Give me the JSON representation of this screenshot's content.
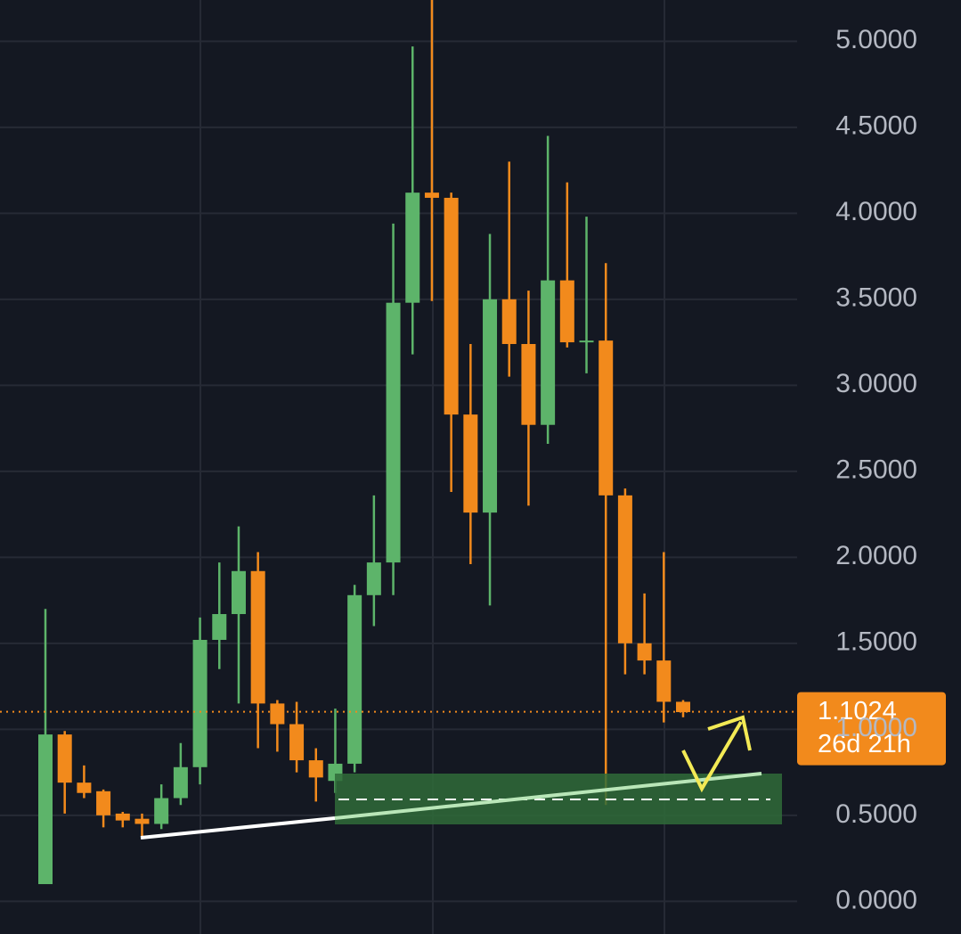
{
  "chart_data": {
    "type": "candlestick",
    "open": [
      0.1,
      0.97,
      0.69,
      0.64,
      0.51,
      0.48,
      0.45,
      0.6,
      0.78,
      1.52,
      1.67,
      1.92,
      1.15,
      1.03,
      0.82,
      0.7,
      0.8,
      1.78,
      1.97,
      3.48,
      4.12,
      4.09,
      2.83,
      2.26,
      3.5,
      3.24,
      2.77,
      3.61,
      3.25,
      3.26,
      2.36,
      1.5,
      1.4,
      1.16
    ],
    "high": [
      1.7,
      0.99,
      0.79,
      0.65,
      0.52,
      0.51,
      0.68,
      0.92,
      1.65,
      1.97,
      2.18,
      2.03,
      1.17,
      1.16,
      0.89,
      1.12,
      1.84,
      2.36,
      3.94,
      4.97,
      5.24,
      4.12,
      3.24,
      3.88,
      4.3,
      3.55,
      4.45,
      4.18,
      3.98,
      3.71,
      2.4,
      1.79,
      2.03,
      1.17
    ],
    "low": [
      0.1,
      0.51,
      0.6,
      0.43,
      0.43,
      0.37,
      0.42,
      0.56,
      0.68,
      1.35,
      1.15,
      0.89,
      0.87,
      0.75,
      0.58,
      0.63,
      0.75,
      1.6,
      1.78,
      3.18,
      3.49,
      2.38,
      1.96,
      1.72,
      3.05,
      2.3,
      2.66,
      3.22,
      3.07,
      0.56,
      1.32,
      1.32,
      1.04,
      1.07
    ],
    "close": [
      0.97,
      0.69,
      0.63,
      0.5,
      0.47,
      0.45,
      0.6,
      0.78,
      1.52,
      1.67,
      1.92,
      1.15,
      1.03,
      0.82,
      0.72,
      0.8,
      1.78,
      1.97,
      3.48,
      4.12,
      4.09,
      2.83,
      2.26,
      3.5,
      3.24,
      2.77,
      3.61,
      3.25,
      3.26,
      2.36,
      1.5,
      1.4,
      1.16,
      1.1
    ],
    "up_color": "#5db46a",
    "down_color": "#f28a1c",
    "ylim": [
      -0.19,
      5.24
    ],
    "yticks": [
      {
        "value": 0,
        "label": "0.0000"
      },
      {
        "value": 0.5,
        "label": "0.5000"
      },
      {
        "value": 1,
        "label": "1.0000"
      },
      {
        "value": 1.5,
        "label": "1.5000"
      },
      {
        "value": 2,
        "label": "2.0000"
      },
      {
        "value": 2.5,
        "label": "2.5000"
      },
      {
        "value": 3,
        "label": "3.0000"
      },
      {
        "value": 3.5,
        "label": "3.5000"
      },
      {
        "value": 4,
        "label": "4.0000"
      },
      {
        "value": 4.5,
        "label": "4.5000"
      },
      {
        "value": 5,
        "label": "5.0000"
      }
    ],
    "grid": true,
    "last_price": 1.1024,
    "countdown": "26d 21h"
  }
}
